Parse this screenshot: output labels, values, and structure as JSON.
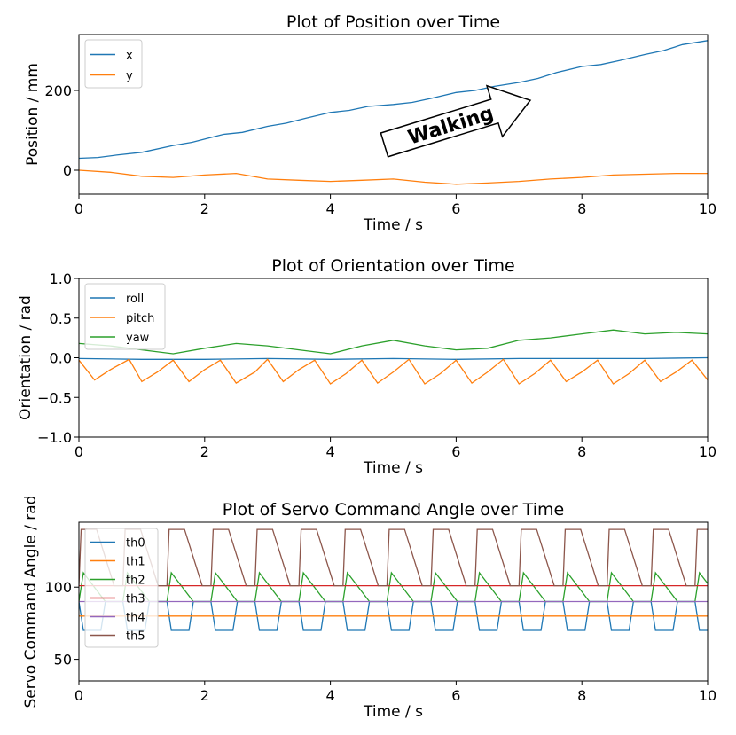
{
  "chart_data": [
    {
      "type": "line",
      "title": "Plot of Position over Time",
      "xlabel": "Time / s",
      "ylabel": "Position / mm",
      "xlim": [
        0,
        10
      ],
      "ylim": [
        -60,
        340
      ],
      "xticks": [
        0,
        2,
        4,
        6,
        8,
        10
      ],
      "yticks": [
        0,
        200
      ],
      "annotation": "Walking",
      "series": [
        {
          "name": "x",
          "color": "#1f77b4",
          "x": [
            0,
            0.3,
            0.6,
            1.0,
            1.5,
            1.8,
            2.0,
            2.3,
            2.6,
            3.0,
            3.3,
            3.6,
            4.0,
            4.3,
            4.6,
            5.0,
            5.3,
            5.6,
            6.0,
            6.3,
            6.6,
            7.0,
            7.3,
            7.6,
            8.0,
            8.3,
            8.6,
            9.0,
            9.3,
            9.6,
            10.0
          ],
          "y": [
            30,
            32,
            38,
            45,
            62,
            70,
            78,
            90,
            95,
            110,
            118,
            130,
            145,
            150,
            160,
            165,
            170,
            180,
            195,
            200,
            210,
            220,
            230,
            245,
            260,
            265,
            275,
            290,
            300,
            315,
            325
          ]
        },
        {
          "name": "y",
          "color": "#ff7f0e",
          "x": [
            0,
            0.5,
            1.0,
            1.5,
            2.0,
            2.5,
            3.0,
            3.5,
            4.0,
            4.5,
            5.0,
            5.5,
            6.0,
            6.5,
            7.0,
            7.5,
            8.0,
            8.5,
            9.0,
            9.5,
            10.0
          ],
          "y": [
            0,
            -5,
            -15,
            -18,
            -12,
            -8,
            -22,
            -25,
            -28,
            -25,
            -22,
            -30,
            -35,
            -32,
            -28,
            -22,
            -18,
            -12,
            -10,
            -8,
            -8
          ]
        }
      ]
    },
    {
      "type": "line",
      "title": "Plot of Orientation over Time",
      "xlabel": "Time / s",
      "ylabel": "Orientation / rad",
      "xlim": [
        0,
        10
      ],
      "ylim": [
        -1.0,
        1.0
      ],
      "xticks": [
        0,
        2,
        4,
        6,
        8,
        10
      ],
      "yticks": [
        -1.0,
        -0.5,
        0.0,
        0.5,
        1.0
      ],
      "series": [
        {
          "name": "roll",
          "color": "#1f77b4",
          "x": [
            0,
            1,
            2,
            3,
            4,
            5,
            6,
            7,
            8,
            9,
            10
          ],
          "y": [
            -0.01,
            -0.02,
            -0.02,
            -0.01,
            -0.02,
            -0.01,
            -0.02,
            -0.01,
            -0.01,
            -0.01,
            0.0
          ]
        },
        {
          "name": "pitch",
          "color": "#ff7f0e",
          "x": [
            0,
            0.25,
            0.5,
            0.8,
            1.0,
            1.25,
            1.5,
            1.75,
            2.0,
            2.25,
            2.5,
            2.8,
            3.0,
            3.25,
            3.5,
            3.75,
            4.0,
            4.25,
            4.5,
            4.75,
            5.0,
            5.25,
            5.5,
            5.75,
            6.0,
            6.25,
            6.5,
            6.75,
            7.0,
            7.25,
            7.5,
            7.75,
            8.0,
            8.25,
            8.5,
            8.75,
            9.0,
            9.25,
            9.5,
            9.75,
            10.0
          ],
          "y": [
            -0.03,
            -0.28,
            -0.15,
            -0.02,
            -0.3,
            -0.18,
            -0.03,
            -0.3,
            -0.15,
            -0.03,
            -0.32,
            -0.18,
            -0.02,
            -0.3,
            -0.15,
            -0.03,
            -0.33,
            -0.2,
            -0.03,
            -0.32,
            -0.18,
            -0.02,
            -0.33,
            -0.2,
            -0.03,
            -0.32,
            -0.18,
            -0.02,
            -0.33,
            -0.2,
            -0.03,
            -0.3,
            -0.18,
            -0.03,
            -0.33,
            -0.2,
            -0.03,
            -0.3,
            -0.18,
            -0.03,
            -0.28
          ]
        },
        {
          "name": "yaw",
          "color": "#2ca02c",
          "x": [
            0,
            0.5,
            1.0,
            1.5,
            2.0,
            2.5,
            3.0,
            3.5,
            4.0,
            4.5,
            5.0,
            5.5,
            6.0,
            6.5,
            7.0,
            7.5,
            8.0,
            8.5,
            9.0,
            9.5,
            10.0
          ],
          "y": [
            0.18,
            0.15,
            0.1,
            0.05,
            0.12,
            0.18,
            0.15,
            0.1,
            0.05,
            0.15,
            0.22,
            0.15,
            0.1,
            0.12,
            0.22,
            0.25,
            0.3,
            0.35,
            0.3,
            0.32,
            0.3
          ]
        }
      ]
    },
    {
      "type": "line",
      "title": "Plot of Servo Command Angle over Time",
      "xlabel": "Time / s",
      "ylabel": "Servo Command Angle / rad",
      "xlim": [
        0,
        10
      ],
      "ylim": [
        35,
        145
      ],
      "xticks": [
        0,
        2,
        4,
        6,
        8,
        10
      ],
      "yticks": [
        50,
        100
      ],
      "series": [
        {
          "name": "th0",
          "color": "#1f77b4",
          "period": 0.7,
          "low": 70,
          "high": 90,
          "pattern": "square"
        },
        {
          "name": "th1",
          "color": "#ff7f0e",
          "constant": 80
        },
        {
          "name": "th2",
          "color": "#2ca02c",
          "period": 0.7,
          "low": 90,
          "high": 110,
          "pattern": "triangle"
        },
        {
          "name": "th3",
          "color": "#d62728",
          "constant": 101
        },
        {
          "name": "th4",
          "color": "#9467bd",
          "constant": 90
        },
        {
          "name": "th5",
          "color": "#8c564b",
          "period": 0.7,
          "low": 101,
          "high": 140,
          "pattern": "sawtooth"
        }
      ]
    }
  ]
}
